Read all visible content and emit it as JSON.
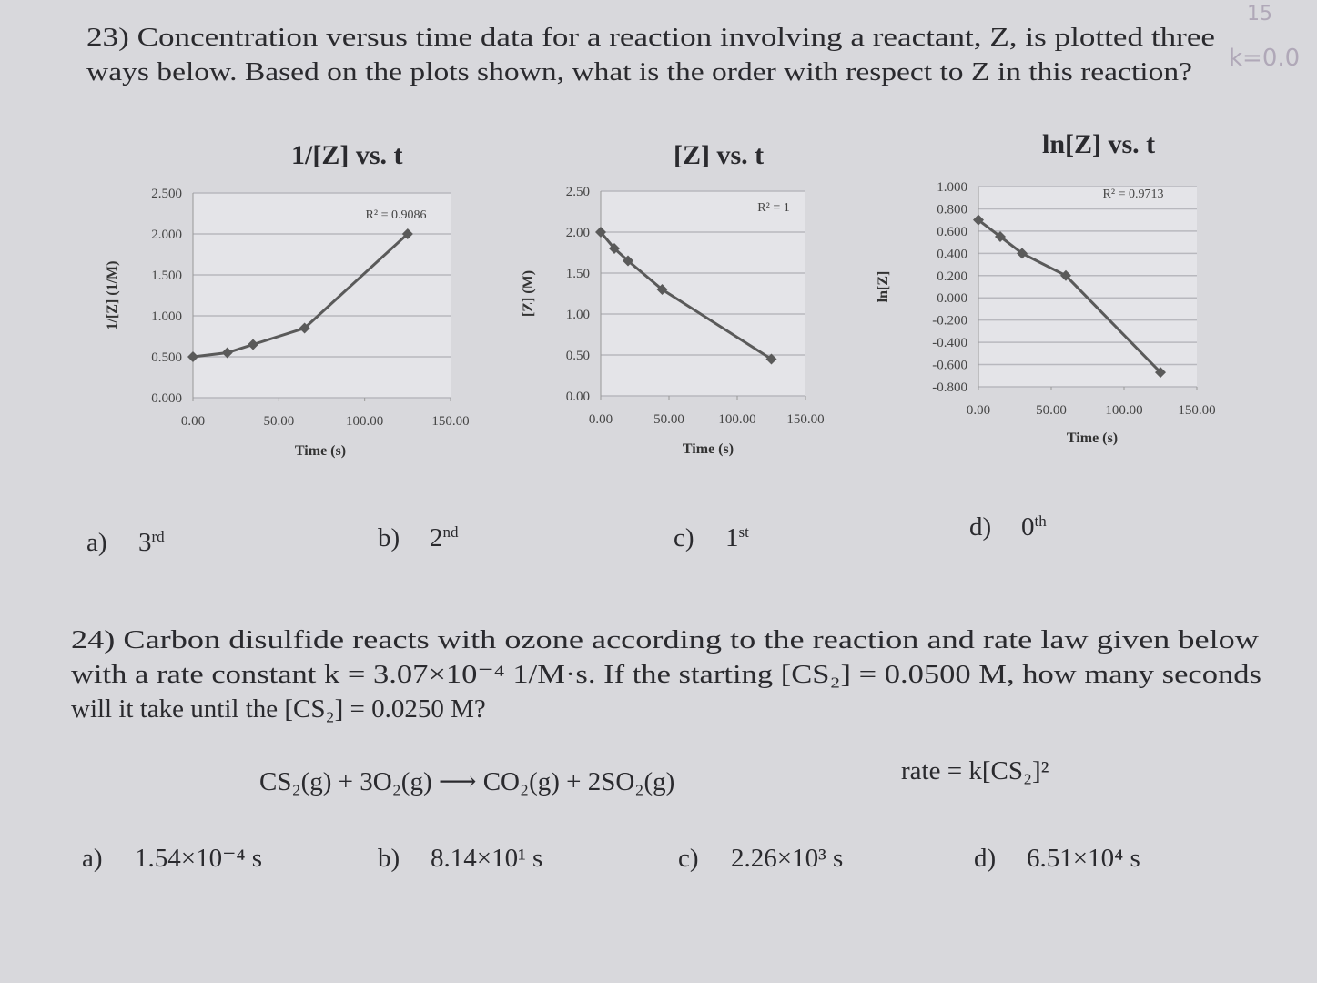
{
  "handwritten": [
    "15",
    "k=0.0"
  ],
  "question_23": {
    "text": [
      "23) Concentration versus time data for a reaction involving a reactant, Z, is plotted three",
      "ways below. Based on the plots shown, what is the order with respect to Z in this reaction?"
    ],
    "options": [
      {
        "label": "a)",
        "number": "3",
        "suffix": "rd"
      },
      {
        "label": "b)",
        "number": "2",
        "suffix": "nd"
      },
      {
        "label": "c)",
        "number": "1",
        "suffix": "st"
      },
      {
        "label": "d)",
        "number": "0",
        "suffix": "th"
      }
    ]
  },
  "chart_data": [
    {
      "type": "line",
      "title": "1/[Z] vs. t",
      "xlabel": "Time (s)",
      "ylabel": "1/[Z] (1/M)",
      "annotation": "R² = 0.9086",
      "x": [
        0,
        20,
        35,
        65,
        125
      ],
      "values": [
        0.5,
        0.55,
        0.65,
        0.85,
        2.0
      ],
      "color": "#5a5a5a",
      "grid": true,
      "xlim": [
        0,
        150
      ],
      "xticks": [
        {
          "value": 0,
          "label": "0.00"
        },
        {
          "value": 50,
          "label": "50.00"
        },
        {
          "value": 100,
          "label": "100.00"
        },
        {
          "value": 150,
          "label": "150.00"
        }
      ],
      "ylim": [
        0,
        2.5
      ],
      "yticks": [
        {
          "value": 0,
          "label": "0.000"
        },
        {
          "value": 0.5,
          "label": "0.500"
        },
        {
          "value": 1,
          "label": "1.000"
        },
        {
          "value": 1.5,
          "label": "1.500"
        },
        {
          "value": 2,
          "label": "2.000"
        },
        {
          "value": 2.5,
          "label": "2.500"
        }
      ]
    },
    {
      "type": "line",
      "title": "[Z] vs. t",
      "xlabel": "Time (s)",
      "ylabel": "[Z] (M)",
      "annotation": "R² = 1",
      "x": [
        0,
        10,
        20,
        45,
        125
      ],
      "values": [
        2.0,
        1.8,
        1.65,
        1.3,
        0.45
      ],
      "color": "#5a5a5a",
      "grid": true,
      "xlim": [
        0,
        150
      ],
      "xticks": [
        {
          "value": 0,
          "label": "0.00"
        },
        {
          "value": 50,
          "label": "50.00"
        },
        {
          "value": 100,
          "label": "100.00"
        },
        {
          "value": 150,
          "label": "150.00"
        }
      ],
      "ylim": [
        0,
        2.5
      ],
      "yticks": [
        {
          "value": 0,
          "label": "0.00"
        },
        {
          "value": 0.5,
          "label": "0.50"
        },
        {
          "value": 1,
          "label": "1.00"
        },
        {
          "value": 1.5,
          "label": "1.50"
        },
        {
          "value": 2,
          "label": "2.00"
        },
        {
          "value": 2.5,
          "label": "2.50"
        }
      ]
    },
    {
      "type": "line",
      "title": "ln[Z] vs. t",
      "xlabel": "Time (s)",
      "ylabel": "ln[Z]",
      "annotation": "R² = 0.9713",
      "x": [
        0,
        15,
        30,
        60,
        125
      ],
      "values": [
        0.7,
        0.55,
        0.4,
        0.2,
        -0.67
      ],
      "color": "#5a5a5a",
      "grid": true,
      "xlim": [
        0,
        150
      ],
      "xticks": [
        {
          "value": 0,
          "label": "0.00"
        },
        {
          "value": 50,
          "label": "50.00"
        },
        {
          "value": 100,
          "label": "100.00"
        },
        {
          "value": 150,
          "label": "150.00"
        }
      ],
      "ylim": [
        -0.8,
        1.0
      ],
      "yticks": [
        {
          "value": -0.8,
          "label": "-0.800"
        },
        {
          "value": -0.6,
          "label": "-0.600"
        },
        {
          "value": -0.4,
          "label": "-0.400"
        },
        {
          "value": -0.2,
          "label": "-0.200"
        },
        {
          "value": 0,
          "label": "0.000"
        },
        {
          "value": 0.2,
          "label": "0.200"
        },
        {
          "value": 0.4,
          "label": "0.400"
        },
        {
          "value": 0.6,
          "label": "0.600"
        },
        {
          "value": 0.8,
          "label": "0.800"
        },
        {
          "value": 1.0,
          "label": "1.000"
        }
      ]
    }
  ],
  "question_24": {
    "text": [
      "24) Carbon disulfide reacts with ozone according to the reaction and rate law given below",
      "with a rate constant k = 3.07×10⁻⁴ 1/M·s. If the starting [CS₂] = 0.0500 M, how many seconds",
      "will it take until the [CS₂] = 0.0250 M?"
    ],
    "equation": "CS₂(g) + 3O₂(g) ⟶ CO₂(g) + 2SO₂(g)",
    "rate_law": "rate = k[CS₂]²",
    "options": [
      {
        "label": "a)",
        "text": "1.54×10⁻⁴ s"
      },
      {
        "label": "b)",
        "text": "8.14×10¹ s"
      },
      {
        "label": "c)",
        "text": "2.26×10³ s"
      },
      {
        "label": "d)",
        "text": "6.51×10⁴ s"
      }
    ]
  }
}
